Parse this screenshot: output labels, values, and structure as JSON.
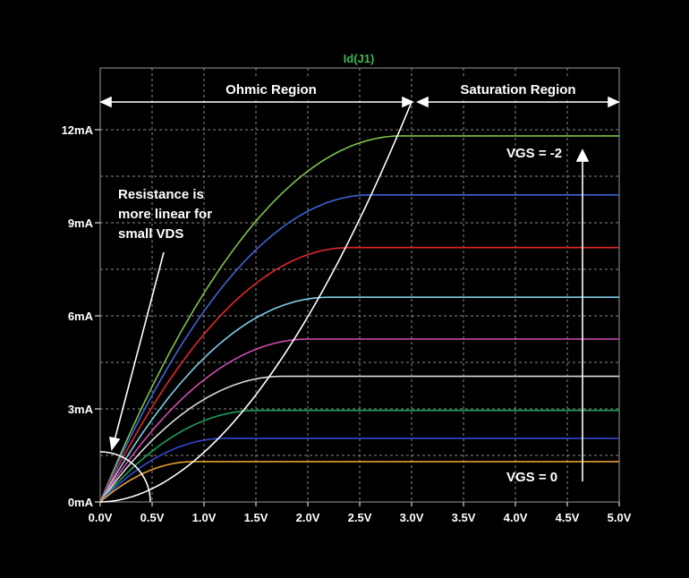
{
  "chart_data": {
    "type": "line",
    "title": "Id(J1)",
    "title_color": "#4cbb3a",
    "xlabel": "",
    "ylabel": "",
    "xlim": [
      0,
      5
    ],
    "ylim": [
      0,
      13
    ],
    "grid": true,
    "x_ticks": [
      "0.0V",
      "0.5V",
      "1.0V",
      "1.5V",
      "2.0V",
      "2.5V",
      "3.0V",
      "3.5V",
      "4.0V",
      "4.5V",
      "5.0V"
    ],
    "y_ticks": [
      "0mA",
      "3mA",
      "6mA",
      "9mA",
      "12mA"
    ],
    "series": [
      {
        "color": "#7ec34a",
        "saturation_mA": 11.8,
        "vp": 2.9
      },
      {
        "color": "#3f64d8",
        "saturation_mA": 9.9,
        "vp": 2.6
      },
      {
        "color": "#e02828",
        "saturation_mA": 8.2,
        "vp": 2.4
      },
      {
        "color": "#7fd0e8",
        "saturation_mA": 6.6,
        "vp": 2.2
      },
      {
        "color": "#d04cae",
        "saturation_mA": 5.25,
        "vp": 2.0
      },
      {
        "color": "#d9d9d9",
        "saturation_mA": 4.05,
        "vp": 1.75
      },
      {
        "color": "#1ea056",
        "saturation_mA": 2.95,
        "vp": 1.5
      },
      {
        "color": "#3448d0",
        "saturation_mA": 2.05,
        "vp": 1.2
      },
      {
        "color": "#e8a030",
        "saturation_mA": 1.3,
        "vp": 0.9
      }
    ],
    "boundary_curve": {
      "color": "#ffffff",
      "x_end": 3.0,
      "y_end": 12.9
    },
    "annotations": {
      "ohmic_region": "Ohmic Region",
      "saturation_region": "Saturation Region",
      "resistance_note": [
        "Resistance is",
        "more linear for",
        "small VDS"
      ],
      "vgs_top": "VGS = -2",
      "vgs_bottom": "VGS = 0"
    }
  }
}
